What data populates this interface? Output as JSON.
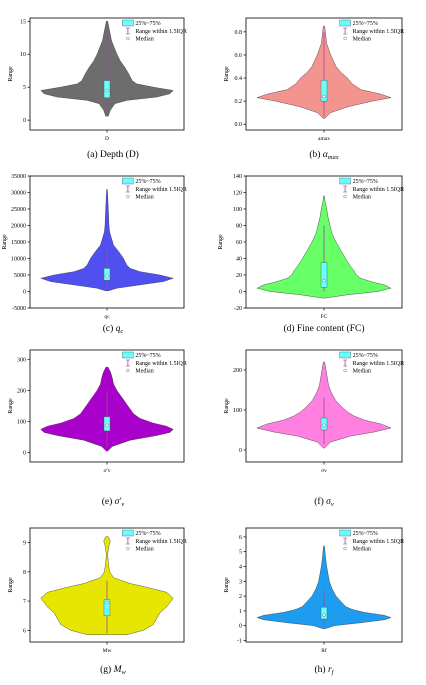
{
  "legend": {
    "box": "25%~75%",
    "whisker": "Range within 1.5IQR",
    "median": "Median"
  },
  "chart_data": [
    {
      "type": "violin",
      "caption": "(a)  Depth (D)",
      "xlabel": "D",
      "ylabel": "Range",
      "ylim": [
        -1.5,
        15.5
      ],
      "yticks": [
        0,
        5,
        10,
        15
      ],
      "color": "#6d6d6d",
      "violin": [
        [
          0.6,
          0.02
        ],
        [
          1.5,
          0.05
        ],
        [
          2.5,
          0.12
        ],
        [
          3,
          0.3
        ],
        [
          3.5,
          0.75
        ],
        [
          4,
          0.95
        ],
        [
          4.5,
          1.0
        ],
        [
          5,
          0.7
        ],
        [
          5.5,
          0.45
        ],
        [
          6,
          0.38
        ],
        [
          7,
          0.33
        ],
        [
          8,
          0.27
        ],
        [
          9,
          0.2
        ],
        [
          10,
          0.15
        ],
        [
          11,
          0.11
        ],
        [
          12,
          0.07
        ],
        [
          13,
          0.05
        ],
        [
          14,
          0.03
        ],
        [
          15,
          0.01
        ]
      ],
      "quartiles": [
        3.4,
        6.0
      ],
      "median": 4.5,
      "whiskers": [
        1.0,
        14.5
      ]
    },
    {
      "type": "violin",
      "caption": "(b)  αmax",
      "caption_main": "(b)  ",
      "caption_sym": "α",
      "caption_sub": "max",
      "xlabel": "amax",
      "ylabel": "Range",
      "ylim": [
        -0.05,
        0.92
      ],
      "yticks": [
        0.0,
        0.2,
        0.4,
        0.6,
        0.8
      ],
      "color": "#f4948f",
      "violin": [
        [
          0.05,
          0.01
        ],
        [
          0.1,
          0.1
        ],
        [
          0.15,
          0.35
        ],
        [
          0.2,
          0.72
        ],
        [
          0.23,
          1.0
        ],
        [
          0.26,
          0.85
        ],
        [
          0.3,
          0.55
        ],
        [
          0.35,
          0.42
        ],
        [
          0.4,
          0.35
        ],
        [
          0.45,
          0.25
        ],
        [
          0.5,
          0.18
        ],
        [
          0.55,
          0.14
        ],
        [
          0.6,
          0.1
        ],
        [
          0.65,
          0.07
        ],
        [
          0.7,
          0.04
        ],
        [
          0.75,
          0.03
        ],
        [
          0.8,
          0.02
        ],
        [
          0.85,
          0.01
        ]
      ],
      "quartiles": [
        0.2,
        0.38
      ],
      "median": 0.24,
      "whiskers": [
        0.06,
        0.8
      ]
    },
    {
      "type": "violin",
      "caption": "(c)  qc",
      "caption_main": "(c)  ",
      "caption_sym": "q",
      "caption_sub": "c",
      "xlabel": "qc",
      "ylabel": "Range",
      "ylim": [
        -5000,
        35000
      ],
      "yticks": [
        -5000,
        0,
        5000,
        10000,
        15000,
        20000,
        25000,
        30000,
        35000
      ],
      "color": "#5050f0",
      "violin": [
        [
          200,
          0.02
        ],
        [
          1000,
          0.15
        ],
        [
          2000,
          0.5
        ],
        [
          3000,
          0.85
        ],
        [
          4000,
          1.0
        ],
        [
          5000,
          0.8
        ],
        [
          6000,
          0.5
        ],
        [
          7000,
          0.35
        ],
        [
          8000,
          0.3
        ],
        [
          10000,
          0.25
        ],
        [
          12000,
          0.18
        ],
        [
          14000,
          0.1
        ],
        [
          16000,
          0.07
        ],
        [
          18000,
          0.04
        ],
        [
          20000,
          0.03
        ],
        [
          25000,
          0.02
        ],
        [
          31000,
          0.005
        ]
      ],
      "quartiles": [
        3400,
        7000
      ],
      "median": 4800,
      "whiskers": [
        400,
        13000
      ]
    },
    {
      "type": "violin",
      "caption": "(d)  Fine content (FC)",
      "xlabel": "FC",
      "ylabel": "Range",
      "ylim": [
        -20,
        140
      ],
      "yticks": [
        -20,
        0,
        20,
        40,
        60,
        80,
        100,
        120,
        140
      ],
      "color": "#66ff66",
      "violin": [
        [
          -8,
          0.02
        ],
        [
          -4,
          0.35
        ],
        [
          0,
          0.8
        ],
        [
          4,
          1.0
        ],
        [
          8,
          0.9
        ],
        [
          12,
          0.7
        ],
        [
          16,
          0.55
        ],
        [
          20,
          0.48
        ],
        [
          25,
          0.45
        ],
        [
          30,
          0.4
        ],
        [
          35,
          0.36
        ],
        [
          40,
          0.32
        ],
        [
          50,
          0.25
        ],
        [
          60,
          0.18
        ],
        [
          70,
          0.12
        ],
        [
          80,
          0.09
        ],
        [
          90,
          0.06
        ],
        [
          100,
          0.04
        ],
        [
          110,
          0.015
        ],
        [
          116,
          0.005
        ]
      ],
      "quartiles": [
        5,
        35
      ],
      "median": 13,
      "whiskers": [
        0,
        80
      ]
    },
    {
      "type": "violin",
      "caption": "(e)  σ′v",
      "caption_main": "(e)  ",
      "caption_sym": "σ′",
      "caption_sub": "v",
      "xlabel": "σ′v",
      "ylabel": "Range",
      "ylim": [
        -30,
        330
      ],
      "yticks": [
        0,
        100,
        200,
        300
      ],
      "color": "#aa00cc",
      "violin": [
        [
          5,
          0.01
        ],
        [
          20,
          0.08
        ],
        [
          40,
          0.35
        ],
        [
          55,
          0.75
        ],
        [
          65,
          0.95
        ],
        [
          75,
          1.0
        ],
        [
          85,
          0.9
        ],
        [
          95,
          0.7
        ],
        [
          110,
          0.5
        ],
        [
          125,
          0.4
        ],
        [
          140,
          0.35
        ],
        [
          155,
          0.3
        ],
        [
          170,
          0.25
        ],
        [
          185,
          0.2
        ],
        [
          200,
          0.15
        ],
        [
          220,
          0.1
        ],
        [
          240,
          0.08
        ],
        [
          255,
          0.06
        ],
        [
          265,
          0.04
        ],
        [
          275,
          0.015
        ]
      ],
      "quartiles": [
        70,
        115
      ],
      "median": 88,
      "whiskers": [
        20,
        200
      ]
    },
    {
      "type": "violin",
      "caption": "(f)  σv",
      "caption_main": "(f)  ",
      "caption_sym": "σ",
      "caption_sub": "v",
      "xlabel": "σv",
      "ylabel": "Range",
      "ylim": [
        -30,
        250
      ],
      "yticks": [
        0,
        100,
        200
      ],
      "color": "#ff80e0",
      "violin": [
        [
          5,
          0.01
        ],
        [
          20,
          0.1
        ],
        [
          35,
          0.4
        ],
        [
          45,
          0.75
        ],
        [
          55,
          1.0
        ],
        [
          65,
          0.85
        ],
        [
          75,
          0.6
        ],
        [
          85,
          0.45
        ],
        [
          95,
          0.35
        ],
        [
          110,
          0.25
        ],
        [
          125,
          0.17
        ],
        [
          140,
          0.12
        ],
        [
          160,
          0.07
        ],
        [
          180,
          0.05
        ],
        [
          200,
          0.03
        ],
        [
          220,
          0.01
        ]
      ],
      "quartiles": [
        50,
        80
      ],
      "median": 62,
      "whiskers": [
        15,
        130
      ]
    },
    {
      "type": "violin",
      "caption": "(g)  Mw",
      "caption_main": "(g)  ",
      "caption_sym": "M",
      "caption_sub": "w",
      "xlabel": "Mw",
      "ylabel": "Range",
      "ylim": [
        5.6,
        9.5
      ],
      "yticks": [
        6,
        7,
        8,
        9
      ],
      "color": "#e6e600",
      "violin": [
        [
          5.85,
          0.3
        ],
        [
          6.0,
          0.55
        ],
        [
          6.2,
          0.7
        ],
        [
          6.4,
          0.75
        ],
        [
          6.6,
          0.8
        ],
        [
          6.8,
          0.9
        ],
        [
          6.95,
          0.95
        ],
        [
          7.1,
          1.0
        ],
        [
          7.3,
          0.9
        ],
        [
          7.5,
          0.55
        ],
        [
          7.6,
          0.35
        ],
        [
          7.8,
          0.1
        ],
        [
          8.0,
          0.04
        ],
        [
          8.3,
          0.02
        ],
        [
          8.6,
          0.01
        ],
        [
          8.9,
          0.03
        ],
        [
          9.05,
          0.05
        ],
        [
          9.2,
          0.02
        ]
      ],
      "quartiles": [
        6.5,
        7.05
      ],
      "median": 6.95,
      "whiskers": [
        5.9,
        7.7
      ]
    },
    {
      "type": "violin",
      "caption": "(h)  rf",
      "caption_main": "(h)  ",
      "caption_sym": "r",
      "caption_sub": "f",
      "xlabel": "Rf",
      "ylabel": "Range",
      "ylim": [
        -1.1,
        6.6
      ],
      "yticks": [
        -1,
        0,
        1,
        2,
        3,
        4,
        5,
        6
      ],
      "color": "#1e9cf0",
      "violin": [
        [
          -0.2,
          0.02
        ],
        [
          0,
          0.15
        ],
        [
          0.2,
          0.55
        ],
        [
          0.4,
          0.9
        ],
        [
          0.55,
          1.0
        ],
        [
          0.7,
          0.9
        ],
        [
          0.9,
          0.6
        ],
        [
          1.1,
          0.42
        ],
        [
          1.3,
          0.32
        ],
        [
          1.6,
          0.26
        ],
        [
          2.0,
          0.18
        ],
        [
          2.5,
          0.12
        ],
        [
          3,
          0.08
        ],
        [
          3.5,
          0.06
        ],
        [
          4,
          0.04
        ],
        [
          4.5,
          0.025
        ],
        [
          5,
          0.015
        ],
        [
          5.4,
          0.005
        ]
      ],
      "quartiles": [
        0.45,
        1.25
      ],
      "median": 0.72,
      "whiskers": [
        0.0,
        2.4
      ]
    }
  ]
}
